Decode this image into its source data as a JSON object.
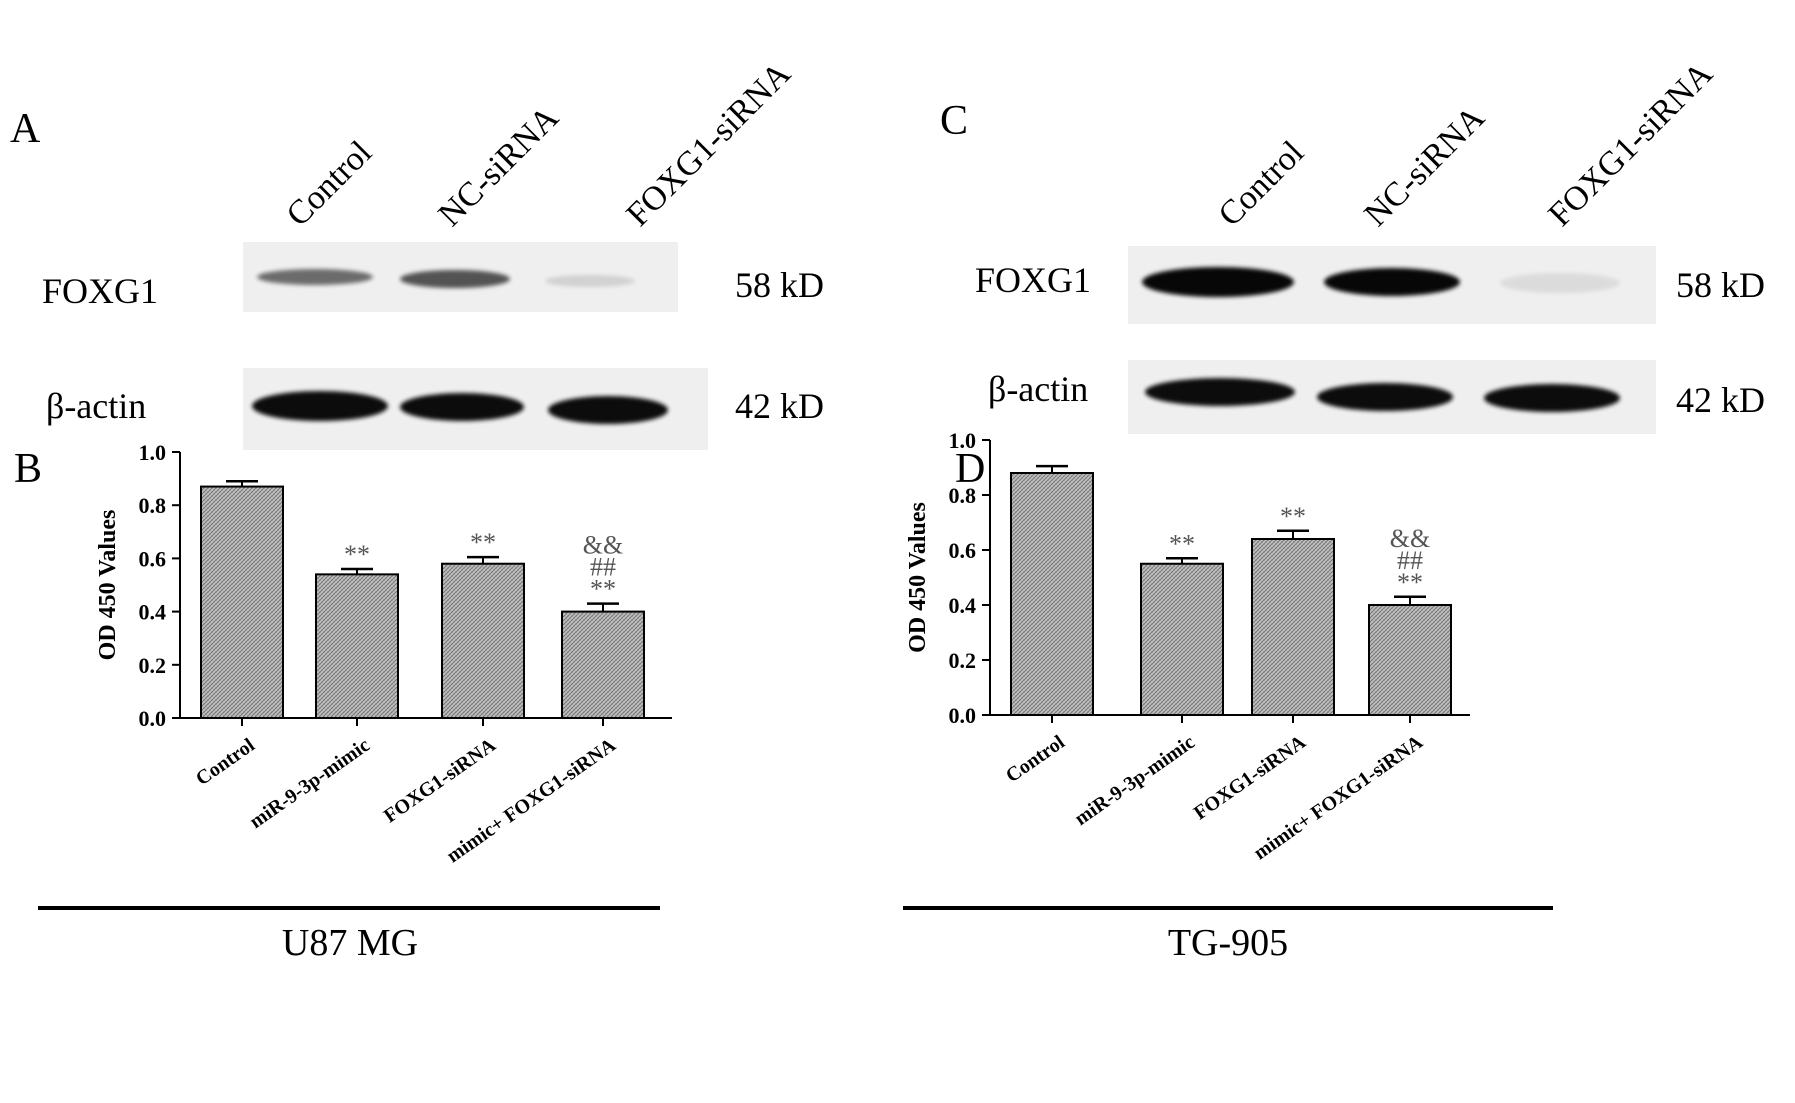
{
  "figure": {
    "panel_labels": [
      "A",
      "B",
      "C",
      "D"
    ]
  },
  "blots": [
    {
      "panel": "A",
      "lanes": [
        "Control",
        "NC-siRNA",
        "FOXG1-siRNA"
      ],
      "rows": [
        {
          "protein": "FOXG1",
          "size": "58 kD",
          "intensity": [
            0.55,
            0.65,
            0.12
          ]
        },
        {
          "protein": "β-actin",
          "size": "42 kD",
          "intensity": [
            1.0,
            1.0,
            1.0
          ]
        }
      ]
    },
    {
      "panel": "C",
      "lanes": [
        "Control",
        "NC-siRNA",
        "FOXG1-siRNA"
      ],
      "rows": [
        {
          "protein": "FOXG1",
          "size": "58 kD",
          "intensity": [
            1.0,
            1.0,
            0.08
          ]
        },
        {
          "protein": "β-actin",
          "size": "42 kD",
          "intensity": [
            1.0,
            1.0,
            1.0
          ]
        }
      ]
    }
  ],
  "chart_data": [
    {
      "panel": "B",
      "type": "bar",
      "categories": [
        "Control",
        "miR-9-3p-mimic",
        "FOXG1-siRNA",
        "mimic+ FOXG1-siRNA"
      ],
      "values": [
        0.87,
        0.54,
        0.58,
        0.4
      ],
      "errors": [
        0.02,
        0.02,
        0.025,
        0.03
      ],
      "annotations": [
        [],
        [
          "**"
        ],
        [
          "**"
        ],
        [
          "&&",
          "##",
          "**"
        ]
      ],
      "ylabel": "OD 450 Values",
      "ylim": [
        0,
        1.0
      ],
      "yticks": [
        "0.0",
        "0.2",
        "0.4",
        "0.6",
        "0.8",
        "1.0"
      ],
      "group_label": "U87 MG"
    },
    {
      "panel": "D",
      "type": "bar",
      "categories": [
        "Control",
        "miR-9-3p-mimic",
        "FOXG1-siRNA",
        "mimic+ FOXG1-siRNA"
      ],
      "values": [
        0.88,
        0.55,
        0.64,
        0.4
      ],
      "errors": [
        0.025,
        0.02,
        0.03,
        0.03
      ],
      "annotations": [
        [],
        [
          "**"
        ],
        [
          "**"
        ],
        [
          "&&",
          "##",
          "**"
        ]
      ],
      "ylabel": "OD 450 Values",
      "ylim": [
        0,
        1.0
      ],
      "yticks": [
        "0.0",
        "0.2",
        "0.4",
        "0.6",
        "0.8",
        "1.0"
      ],
      "group_label": "TG-905"
    }
  ]
}
